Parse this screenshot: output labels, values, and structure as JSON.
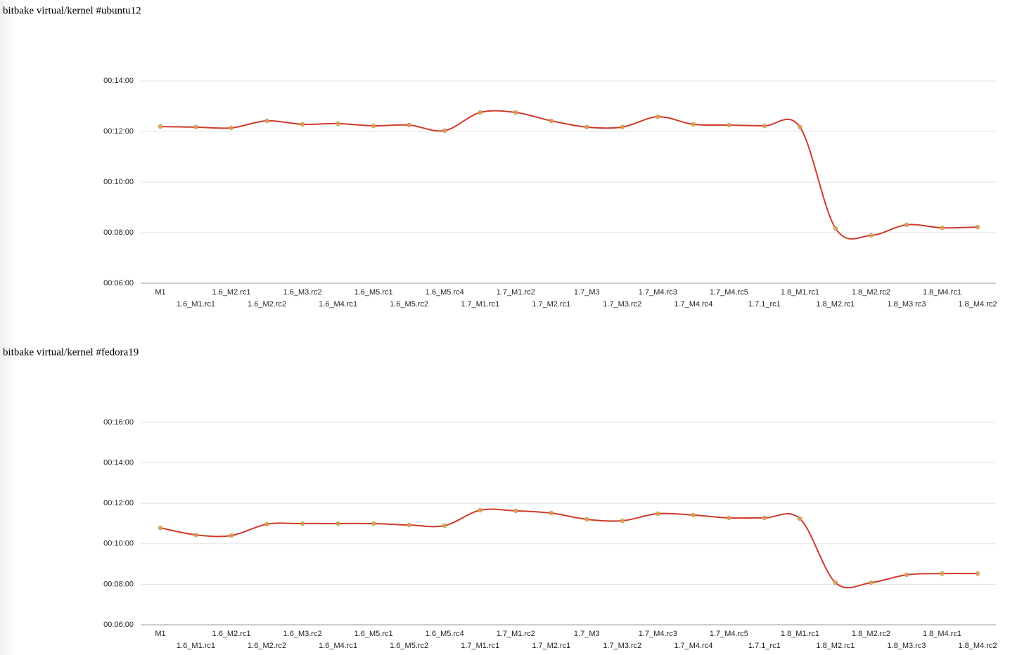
{
  "chart_data": [
    {
      "type": "line",
      "title": "bitbake virtual/kernel #ubuntu12",
      "categories": [
        "M1",
        "1.6_M1.rc1",
        "1.6_M2.rc1",
        "1.6_M2.rc2",
        "1.6_M3.rc2",
        "1.6_M4.rc1",
        "1.6_M5.rc1",
        "1.6_M5.rc2",
        "1.6_M5.rc4",
        "1.7_M1.rc1",
        "1.7_M1.rc2",
        "1.7_M2.rc1",
        "1.7_M3",
        "1.7_M3.rc2",
        "1.7_M4.rc3",
        "1.7_M4.rc4",
        "1.7_M4.rc5",
        "1.7.1_rc1",
        "1.8_M1.rc1",
        "1.8_M2.rc1",
        "1.8_M2.rc2",
        "1.8_M3.rc3",
        "1.8_M4.rc1",
        "1.8_M4.rc2"
      ],
      "values": [
        12.19,
        12.17,
        12.14,
        12.42,
        12.28,
        12.31,
        12.22,
        12.25,
        12.03,
        12.75,
        12.75,
        12.42,
        12.17,
        12.17,
        12.58,
        12.28,
        12.25,
        12.22,
        12.17,
        8.17,
        7.89,
        8.31,
        8.19,
        8.22
      ],
      "color": "#d03a2a",
      "ylim": [
        6,
        14
      ],
      "yticks": [
        {
          "value": 6,
          "label": "00:06:00"
        },
        {
          "value": 8,
          "label": "00:08:00"
        },
        {
          "value": 10,
          "label": "00:10:00"
        },
        {
          "value": 12,
          "label": "00:12:00"
        },
        {
          "value": 14,
          "label": "00:14:00"
        }
      ],
      "grid": true
    },
    {
      "type": "line",
      "title": "bitbake virtual/kernel #fedora19",
      "categories": [
        "M1",
        "1.6_M1.rc1",
        "1.6_M2.rc1",
        "1.6_M2.rc2",
        "1.6_M3.rc2",
        "1.6_M4.rc1",
        "1.6_M5.rc1",
        "1.6_M5.rc2",
        "1.6_M5.rc4",
        "1.7_M1.rc1",
        "1.7_M1.rc2",
        "1.7_M2.rc1",
        "1.7_M3",
        "1.7_M3.rc2",
        "1.7_M4.rc3",
        "1.7_M4.rc4",
        "1.7_M4.rc5",
        "1.7.1_rc1",
        "1.8_M1.rc1",
        "1.8_M2.rc1",
        "1.8_M2.rc2",
        "1.8_M3.rc3",
        "1.8_M4.rc1",
        "1.8_M4.rc2"
      ],
      "values": [
        10.79,
        10.44,
        10.41,
        10.97,
        11.0,
        11.0,
        11.0,
        10.93,
        10.9,
        11.66,
        11.63,
        11.52,
        11.21,
        11.14,
        11.49,
        11.42,
        11.28,
        11.28,
        11.24,
        8.08,
        8.08,
        8.47,
        8.53,
        8.53
      ],
      "color": "#d03a2a",
      "ylim": [
        6,
        16
      ],
      "yticks": [
        {
          "value": 6,
          "label": "00:06:00"
        },
        {
          "value": 8,
          "label": "00:08:00"
        },
        {
          "value": 10,
          "label": "00:10:00"
        },
        {
          "value": 12,
          "label": "00:12:00"
        },
        {
          "value": 14,
          "label": "00:14:00"
        },
        {
          "value": 16,
          "label": "00:16:00"
        }
      ],
      "grid": true
    }
  ]
}
